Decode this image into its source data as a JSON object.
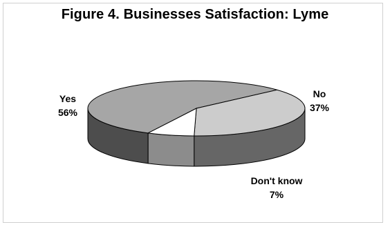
{
  "chart_data": {
    "type": "pie",
    "title": "Figure 4.  Businesses Satisfaction: Lyme",
    "slices": [
      {
        "label": "Yes",
        "value": 56,
        "value_label": "56%",
        "color": "#a6a6a6",
        "side_color": "#4d4d4d"
      },
      {
        "label": "No",
        "value": 37,
        "value_label": "37%",
        "color": "#cccccc",
        "side_color": "#666666"
      },
      {
        "label": "Don't know",
        "value": 7,
        "value_label": "7%",
        "color": "#ffffff",
        "side_color": "#8c8c8c"
      }
    ],
    "three_d": true,
    "legend": "none"
  }
}
